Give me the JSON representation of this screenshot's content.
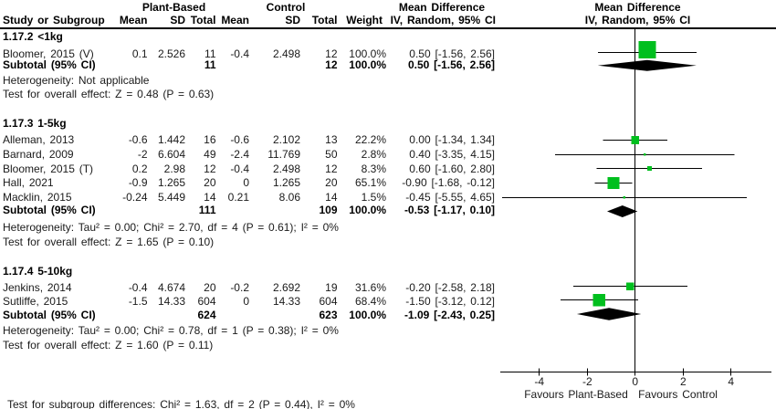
{
  "header": {
    "group_labels": [
      "Plant-Based",
      "Control",
      "Mean Difference"
    ],
    "plot_title_line1": "Mean Difference",
    "plot_title_line2": "IV, Random, 95% CI",
    "columns": [
      "Study or Subgroup",
      "Mean",
      "SD",
      "Total",
      "Mean",
      "SD",
      "Total",
      "Weight",
      "IV, Random, 95% CI"
    ]
  },
  "chart_data": {
    "type": "forest",
    "effect_measure": "Mean Difference, IV, Random, 95% CI",
    "xlim": [
      -5.6,
      5.7
    ],
    "ticks": [
      -4,
      -2,
      0,
      2,
      4
    ],
    "groups": [
      {
        "title": "1.17.2 <1kg",
        "studies": [
          {
            "name": "Bloomer, 2015 (V)",
            "mean1": "0.1",
            "sd1": "2.526",
            "n1": "11",
            "mean2": "-0.4",
            "sd2": "2.498",
            "n2": "12",
            "weight": "100.0%",
            "ci_text": "0.50 [-1.56, 2.56]",
            "md": 0.5,
            "lo": -1.56,
            "hi": 2.56
          }
        ],
        "subtotal": {
          "label": "Subtotal (95% CI)",
          "n1": "11",
          "n2": "12",
          "weight": "100.0%",
          "ci_text": "0.50 [-1.56, 2.56]",
          "md": 0.5,
          "lo": -1.56,
          "hi": 2.56
        },
        "heterogeneity": "Heterogeneity: Not applicable",
        "overall_effect": "Test for overall effect: Z = 0.48 (P = 0.63)"
      },
      {
        "title": "1.17.3 1-5kg",
        "studies": [
          {
            "name": "Alleman, 2013",
            "mean1": "-0.6",
            "sd1": "1.442",
            "n1": "16",
            "mean2": "-0.6",
            "sd2": "2.102",
            "n2": "13",
            "weight": "22.2%",
            "ci_text": "0.00 [-1.34, 1.34]",
            "md": 0.0,
            "lo": -1.34,
            "hi": 1.34
          },
          {
            "name": "Barnard, 2009",
            "mean1": "-2",
            "sd1": "6.604",
            "n1": "49",
            "mean2": "-2.4",
            "sd2": "11.769",
            "n2": "50",
            "weight": "2.8%",
            "ci_text": "0.40 [-3.35, 4.15]",
            "md": 0.4,
            "lo": -3.35,
            "hi": 4.15
          },
          {
            "name": "Bloomer, 2015 (T)",
            "mean1": "0.2",
            "sd1": "2.98",
            "n1": "12",
            "mean2": "-0.4",
            "sd2": "2.498",
            "n2": "12",
            "weight": "8.3%",
            "ci_text": "0.60 [-1.60, 2.80]",
            "md": 0.6,
            "lo": -1.6,
            "hi": 2.8
          },
          {
            "name": "Hall, 2021",
            "mean1": "-0.9",
            "sd1": "1.265",
            "n1": "20",
            "mean2": "0",
            "sd2": "1.265",
            "n2": "20",
            "weight": "65.1%",
            "ci_text": "-0.90 [-1.68, -0.12]",
            "md": -0.9,
            "lo": -1.68,
            "hi": -0.12
          },
          {
            "name": "Macklin, 2015",
            "mean1": "-0.24",
            "sd1": "5.449",
            "n1": "14",
            "mean2": "0.21",
            "sd2": "8.06",
            "n2": "14",
            "weight": "1.5%",
            "ci_text": "-0.45 [-5.55, 4.65]",
            "md": -0.45,
            "lo": -5.55,
            "hi": 4.65
          }
        ],
        "subtotal": {
          "label": "Subtotal (95% CI)",
          "n1": "111",
          "n2": "109",
          "weight": "100.0%",
          "ci_text": "-0.53 [-1.17, 0.10]",
          "md": -0.53,
          "lo": -1.17,
          "hi": 0.1
        },
        "heterogeneity": "Heterogeneity: Tau² = 0.00; Chi² = 2.70, df = 4 (P = 0.61); I² = 0%",
        "overall_effect": "Test for overall effect: Z = 1.65 (P = 0.10)"
      },
      {
        "title": "1.17.4 5-10kg",
        "studies": [
          {
            "name": "Jenkins, 2014",
            "mean1": "-0.4",
            "sd1": "4.674",
            "n1": "20",
            "mean2": "-0.2",
            "sd2": "2.692",
            "n2": "19",
            "weight": "31.6%",
            "ci_text": "-0.20 [-2.58, 2.18]",
            "md": -0.2,
            "lo": -2.58,
            "hi": 2.18
          },
          {
            "name": "Sutliffe, 2015",
            "mean1": "-1.5",
            "sd1": "14.33",
            "n1": "604",
            "mean2": "0",
            "sd2": "14.33",
            "n2": "604",
            "weight": "68.4%",
            "ci_text": "-1.50 [-3.12, 0.12]",
            "md": -1.5,
            "lo": -3.12,
            "hi": 0.12
          }
        ],
        "subtotal": {
          "label": "Subtotal (95% CI)",
          "n1": "624",
          "n2": "623",
          "weight": "100.0%",
          "ci_text": "-1.09 [-2.43, 0.25]",
          "md": -1.09,
          "lo": -2.43,
          "hi": 0.25
        },
        "heterogeneity": "Heterogeneity: Tau² = 0.00; Chi² = 0.78, df = 1 (P = 0.38); I² = 0%",
        "overall_effect": "Test for overall effect: Z = 1.60 (P = 0.11)"
      }
    ]
  },
  "axis": {
    "tick_labels": [
      "-4",
      "-2",
      "0",
      "2",
      "4"
    ],
    "favours_left": "Favours Plant-Based",
    "favours_right": "Favours Control"
  },
  "footer": {
    "subgroup_test": "Test for subgroup differences: Chi² = 1.63, df = 2 (P = 0.44), I² = 0%"
  },
  "colors": {
    "square": "#00bf1e",
    "diamond": "#000000",
    "line": "#000000"
  }
}
